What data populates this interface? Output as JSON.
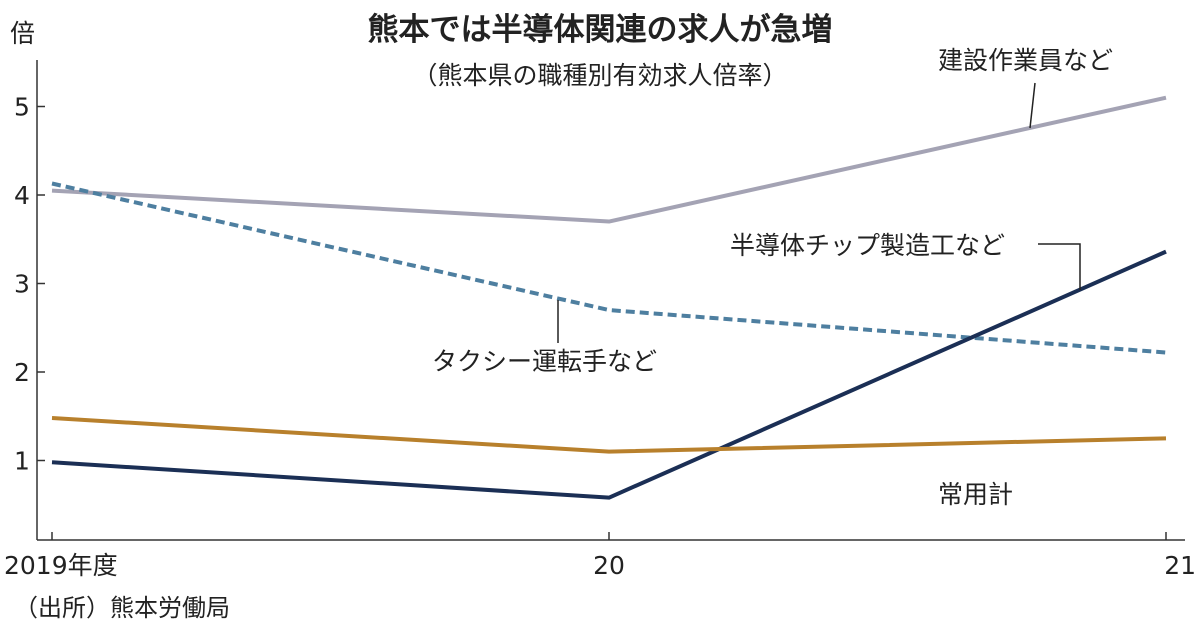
{
  "chart_data": {
    "type": "line",
    "title": "熊本では半導体関連の求人が急増",
    "subtitle": "（熊本県の職種別有効求人倍率）",
    "ylabel": "倍",
    "source": "（出所）熊本労働局",
    "x": [
      "2019年度",
      "20",
      "21"
    ],
    "ylim": [
      0,
      5.5
    ],
    "yticks": [
      1,
      2,
      3,
      4,
      5
    ],
    "grid": false,
    "series": [
      {
        "name": "建設作業員など",
        "values": [
          4.05,
          3.7,
          5.1
        ],
        "color": "#a4a3b4",
        "style": "solid"
      },
      {
        "name": "タクシー運転手など",
        "values": [
          4.13,
          2.7,
          2.22
        ],
        "color": "#4e7fa0",
        "style": "dashed"
      },
      {
        "name": "半導体チップ製造工など",
        "values": [
          0.98,
          0.58,
          3.36
        ],
        "color": "#1b2f55",
        "style": "solid"
      },
      {
        "name": "常用計",
        "values": [
          1.48,
          1.1,
          1.25
        ],
        "color": "#b8802c",
        "style": "solid"
      }
    ]
  }
}
